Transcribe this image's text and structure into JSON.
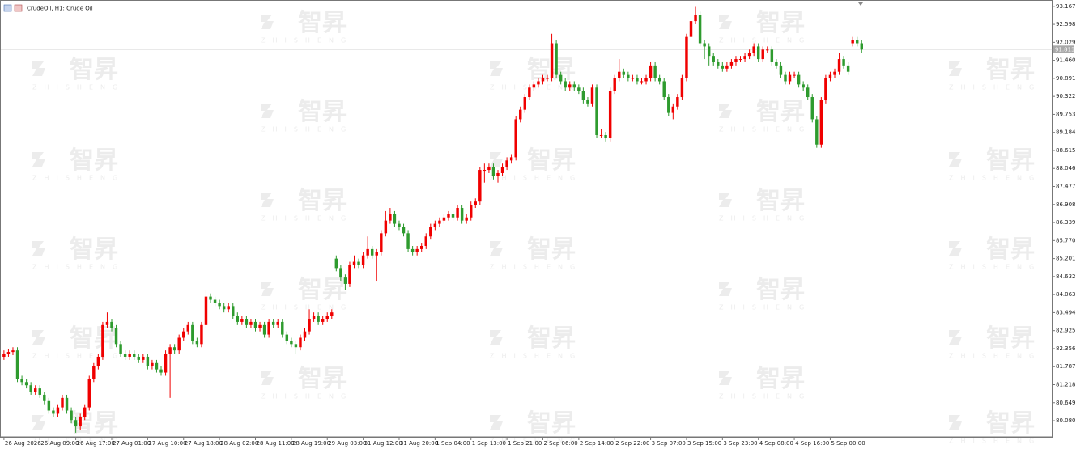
{
  "chart_data": {
    "type": "candlestick",
    "title": "CrudeOil, H1: Crude Oil",
    "watermark": "智昇",
    "watermark_sub": "ZHISHENG",
    "up_color": "#f00000",
    "down_color": "#2e9b2e",
    "current_price": 91.813,
    "open": [
      82.1,
      82.2,
      82.25,
      82.3,
      81.4,
      81.3,
      81.2,
      81.0,
      81.1,
      80.9,
      80.7,
      80.4,
      80.3,
      80.5,
      80.8,
      80.4,
      80.1,
      79.9,
      80.2,
      80.5,
      81.4,
      81.8,
      82.1,
      83.1,
      83.2,
      83.0,
      82.5,
      82.2,
      82.1,
      82.2,
      82.1,
      82.0,
      82.1,
      81.8,
      81.9,
      81.7,
      81.6,
      82.2,
      82.4,
      82.3,
      82.7,
      82.9,
      83.1,
      82.6,
      82.5,
      83.1,
      84.0,
      83.9,
      83.8,
      83.7,
      83.6,
      83.7,
      83.4,
      83.2,
      83.3,
      83.1,
      83.2,
      83.0,
      83.1,
      82.8,
      83.2,
      83.1,
      83.2,
      82.8,
      82.6,
      82.5,
      82.4,
      82.7,
      82.9,
      83.3,
      83.4,
      83.2,
      83.3,
      83.4,
      85.2,
      84.9,
      84.6,
      84.4,
      85.0,
      85.1,
      85.0,
      85.3,
      85.5,
      85.3,
      85.4,
      86.0,
      86.4,
      86.6,
      86.3,
      86.2,
      86.0,
      85.5,
      85.4,
      85.5,
      85.6,
      85.9,
      86.2,
      86.3,
      86.4,
      86.5,
      86.6,
      86.5,
      86.8,
      86.4,
      86.5,
      86.9,
      87.0,
      88.0,
      88.0,
      88.1,
      87.8,
      87.9,
      88.1,
      88.3,
      88.4,
      89.6,
      89.9,
      90.3,
      90.6,
      90.7,
      90.8,
      90.9,
      90.9,
      92.0,
      91.0,
      90.8,
      90.6,
      90.7,
      90.6,
      90.5,
      90.2,
      90.1,
      90.6,
      89.1,
      89.1,
      89.0,
      90.5,
      90.9,
      91.1,
      91.0,
      90.9,
      90.9,
      90.8,
      90.8,
      90.9,
      91.3,
      90.9,
      90.8,
      90.3,
      89.8,
      90.0,
      90.3,
      90.9,
      92.2,
      92.7,
      92.9,
      92.0,
      91.9,
      91.6,
      91.4,
      91.3,
      91.2,
      91.3,
      91.4,
      91.5,
      91.5,
      91.6,
      91.7,
      91.9,
      91.5,
      91.8,
      91.8,
      91.4,
      91.3,
      91.0,
      90.8,
      91.0,
      91.0,
      90.7,
      90.6,
      90.3,
      89.6,
      88.8,
      90.2,
      90.9,
      91.0,
      91.1,
      91.5,
      91.3,
      92.0,
      92.1,
      92.0
    ],
    "high": [
      82.3,
      82.35,
      82.4,
      82.4,
      81.5,
      81.4,
      81.3,
      81.2,
      81.2,
      81.0,
      80.8,
      80.5,
      80.6,
      80.9,
      80.9,
      80.5,
      80.2,
      80.3,
      80.6,
      81.5,
      81.9,
      82.2,
      83.2,
      83.5,
      83.3,
      83.1,
      82.6,
      82.3,
      82.3,
      82.3,
      82.2,
      82.2,
      82.2,
      82.0,
      82.0,
      81.8,
      82.3,
      82.5,
      82.5,
      82.8,
      83.0,
      83.2,
      83.2,
      82.7,
      83.2,
      84.2,
      84.1,
      84.0,
      83.9,
      83.8,
      83.8,
      83.8,
      83.5,
      83.4,
      83.4,
      83.3,
      83.3,
      83.2,
      83.2,
      83.3,
      83.3,
      83.3,
      83.3,
      82.9,
      82.7,
      82.6,
      82.8,
      83.0,
      83.6,
      83.5,
      83.5,
      83.4,
      83.5,
      83.6,
      85.3,
      85.0,
      84.7,
      85.1,
      85.3,
      85.2,
      85.4,
      85.9,
      85.6,
      85.5,
      86.1,
      86.7,
      86.8,
      86.7,
      86.4,
      86.3,
      86.1,
      85.6,
      85.6,
      85.7,
      86.0,
      86.3,
      86.4,
      86.5,
      86.6,
      86.7,
      86.7,
      86.9,
      86.9,
      86.6,
      87.0,
      87.1,
      88.1,
      88.2,
      88.2,
      88.2,
      88.0,
      88.2,
      88.4,
      88.5,
      89.7,
      90.0,
      90.4,
      90.7,
      90.8,
      90.9,
      91.0,
      91.0,
      92.3,
      92.1,
      91.1,
      90.9,
      90.8,
      90.8,
      90.7,
      90.6,
      90.3,
      90.7,
      90.7,
      89.3,
      89.2,
      90.6,
      91.0,
      91.5,
      91.2,
      91.1,
      91.0,
      91.0,
      90.9,
      91.0,
      91.4,
      91.4,
      91.0,
      90.9,
      90.4,
      90.1,
      90.4,
      91.0,
      92.3,
      92.9,
      93.15,
      93.0,
      92.1,
      92.0,
      91.7,
      91.5,
      91.4,
      91.4,
      91.5,
      91.6,
      91.6,
      91.7,
      91.8,
      92.0,
      92.0,
      91.9,
      91.9,
      91.9,
      91.5,
      91.4,
      91.1,
      91.1,
      91.1,
      91.1,
      90.8,
      90.7,
      90.4,
      89.7,
      90.3,
      91.0,
      91.1,
      91.2,
      91.7,
      91.6,
      91.4,
      92.2,
      92.2,
      92.1
    ],
    "low": [
      82.0,
      82.1,
      82.15,
      81.3,
      81.2,
      81.1,
      80.9,
      80.9,
      80.8,
      80.6,
      80.3,
      80.2,
      80.2,
      80.4,
      80.3,
      80.0,
      79.7,
      79.8,
      80.1,
      80.4,
      81.3,
      81.7,
      82.0,
      83.0,
      82.9,
      82.4,
      82.1,
      82.0,
      82.0,
      82.0,
      81.9,
      81.9,
      81.7,
      81.7,
      81.6,
      81.5,
      81.5,
      80.8,
      82.2,
      82.2,
      82.6,
      82.8,
      82.5,
      82.4,
      82.4,
      83.0,
      83.8,
      83.7,
      83.6,
      83.5,
      83.5,
      83.3,
      83.1,
      83.1,
      83.0,
      83.0,
      82.9,
      82.9,
      82.7,
      82.7,
      83.0,
      83.0,
      82.7,
      82.5,
      82.4,
      82.2,
      82.3,
      82.6,
      82.8,
      83.2,
      83.1,
      83.1,
      83.2,
      83.3,
      84.8,
      84.5,
      84.2,
      84.3,
      84.9,
      84.9,
      84.9,
      85.2,
      85.2,
      84.5,
      85.3,
      85.9,
      86.3,
      86.2,
      86.1,
      85.9,
      85.4,
      85.3,
      85.3,
      85.4,
      85.5,
      85.8,
      86.1,
      86.2,
      86.3,
      86.4,
      86.4,
      86.4,
      86.3,
      86.3,
      86.4,
      86.8,
      86.9,
      87.6,
      87.9,
      87.7,
      87.6,
      87.8,
      88.0,
      88.2,
      88.3,
      89.5,
      89.8,
      90.2,
      90.5,
      90.6,
      90.7,
      90.8,
      90.8,
      90.9,
      90.7,
      90.5,
      90.5,
      90.5,
      90.4,
      90.1,
      90.0,
      90.0,
      89.0,
      89.0,
      88.9,
      88.9,
      90.4,
      90.8,
      90.9,
      90.8,
      90.8,
      90.7,
      90.7,
      90.7,
      90.8,
      90.8,
      90.7,
      90.2,
      89.7,
      89.6,
      89.9,
      90.2,
      90.8,
      92.1,
      92.6,
      91.9,
      91.5,
      91.3,
      91.3,
      91.2,
      91.1,
      91.1,
      91.2,
      91.3,
      91.4,
      91.4,
      91.5,
      91.6,
      91.4,
      91.4,
      91.7,
      91.3,
      91.2,
      90.9,
      90.7,
      90.7,
      90.9,
      90.6,
      90.5,
      90.2,
      89.5,
      88.7,
      88.7,
      90.1,
      90.8,
      90.9,
      91.0,
      91.2,
      91.0,
      91.9,
      91.9,
      91.7
    ],
    "close": [
      82.2,
      82.25,
      82.3,
      81.4,
      81.3,
      81.2,
      81.0,
      81.1,
      80.9,
      80.7,
      80.4,
      80.3,
      80.5,
      80.8,
      80.4,
      80.1,
      79.9,
      80.2,
      80.5,
      81.4,
      81.8,
      82.1,
      83.1,
      83.2,
      83.0,
      82.5,
      82.2,
      82.1,
      82.2,
      82.1,
      82.0,
      82.1,
      81.8,
      81.9,
      81.7,
      81.6,
      82.2,
      82.4,
      82.3,
      82.7,
      82.9,
      83.1,
      82.6,
      82.5,
      83.1,
      84.0,
      83.9,
      83.8,
      83.7,
      83.6,
      83.7,
      83.4,
      83.2,
      83.3,
      83.1,
      83.2,
      83.0,
      83.1,
      82.8,
      83.2,
      83.1,
      83.2,
      82.8,
      82.6,
      82.5,
      82.4,
      82.7,
      82.9,
      83.3,
      83.4,
      83.2,
      83.3,
      83.4,
      83.5,
      84.9,
      84.6,
      84.4,
      85.0,
      85.1,
      85.0,
      85.3,
      85.5,
      85.3,
      85.4,
      86.0,
      86.4,
      86.6,
      86.3,
      86.2,
      86.0,
      85.5,
      85.4,
      85.5,
      85.6,
      85.9,
      86.2,
      86.3,
      86.4,
      86.5,
      86.6,
      86.5,
      86.8,
      86.4,
      86.5,
      86.9,
      87.0,
      88.0,
      88.0,
      88.1,
      87.8,
      87.9,
      88.1,
      88.3,
      88.4,
      89.6,
      89.9,
      90.3,
      90.6,
      90.7,
      90.8,
      90.9,
      90.9,
      92.0,
      91.0,
      90.8,
      90.6,
      90.7,
      90.6,
      90.5,
      90.2,
      90.1,
      90.6,
      89.1,
      89.1,
      89.0,
      90.5,
      90.9,
      91.1,
      91.0,
      90.9,
      90.9,
      90.8,
      90.8,
      90.9,
      91.3,
      90.9,
      90.8,
      90.3,
      89.8,
      90.0,
      90.3,
      90.9,
      92.2,
      92.7,
      92.9,
      92.0,
      91.9,
      91.6,
      91.4,
      91.3,
      91.2,
      91.3,
      91.4,
      91.5,
      91.5,
      91.6,
      91.7,
      91.9,
      91.5,
      91.8,
      91.8,
      91.4,
      91.3,
      91.0,
      90.8,
      91.0,
      91.0,
      90.7,
      90.6,
      90.3,
      89.6,
      88.8,
      90.2,
      90.9,
      91.0,
      91.1,
      91.5,
      91.3,
      91.1,
      92.1,
      92.0,
      91.8
    ],
    "xlim": [
      -0.7,
      233.5
    ],
    "xticks": [
      {
        "value": 0,
        "label": "26 Aug 2026"
      },
      {
        "value": 8,
        "label": "26 Aug 09:00"
      },
      {
        "value": 16,
        "label": "26 Aug 17:00"
      },
      {
        "value": 24,
        "label": "27 Aug 01:00"
      },
      {
        "value": 32,
        "label": "27 Aug 10:00"
      },
      {
        "value": 40,
        "label": "27 Aug 18:00"
      },
      {
        "value": 48,
        "label": "28 Aug 02:00"
      },
      {
        "value": 56,
        "label": "28 Aug 11:00"
      },
      {
        "value": 64,
        "label": "28 Aug 19:00"
      },
      {
        "value": 72,
        "label": "29 Aug 03:00"
      },
      {
        "value": 80,
        "label": "31 Aug 12:00"
      },
      {
        "value": 88,
        "label": "31 Aug 20:00"
      },
      {
        "value": 96,
        "label": "1 Sep 04:00"
      },
      {
        "value": 104,
        "label": "1 Sep 13:00"
      },
      {
        "value": 112,
        "label": "1 Sep 21:00"
      },
      {
        "value": 120,
        "label": "2 Sep 06:00"
      },
      {
        "value": 128,
        "label": "2 Sep 14:00"
      },
      {
        "value": 136,
        "label": "2 Sep 22:00"
      },
      {
        "value": 144,
        "label": "3 Sep 07:00"
      },
      {
        "value": 152,
        "label": "3 Sep 15:00"
      },
      {
        "value": 160,
        "label": "3 Sep 23:00"
      },
      {
        "value": 168,
        "label": "4 Sep 08:00"
      },
      {
        "value": 176,
        "label": "4 Sep 16:00"
      },
      {
        "value": 184,
        "label": "5 Sep 00:00"
      }
    ],
    "ylim": [
      79.57,
      93.29
    ],
    "yticks": [
      93.167,
      92.598,
      92.029,
      {
        "value": 91.46,
        "label": "91.460"
      },
      90.891,
      90.322,
      89.753,
      89.184,
      88.615,
      88.046,
      87.477,
      86.908,
      86.339,
      {
        "value": 85.77,
        "label": "85.770"
      },
      85.201,
      84.632,
      84.063,
      83.494,
      82.925,
      82.356,
      81.787,
      81.218,
      80.649,
      {
        "value": 80.08,
        "label": "80.080"
      }
    ]
  }
}
